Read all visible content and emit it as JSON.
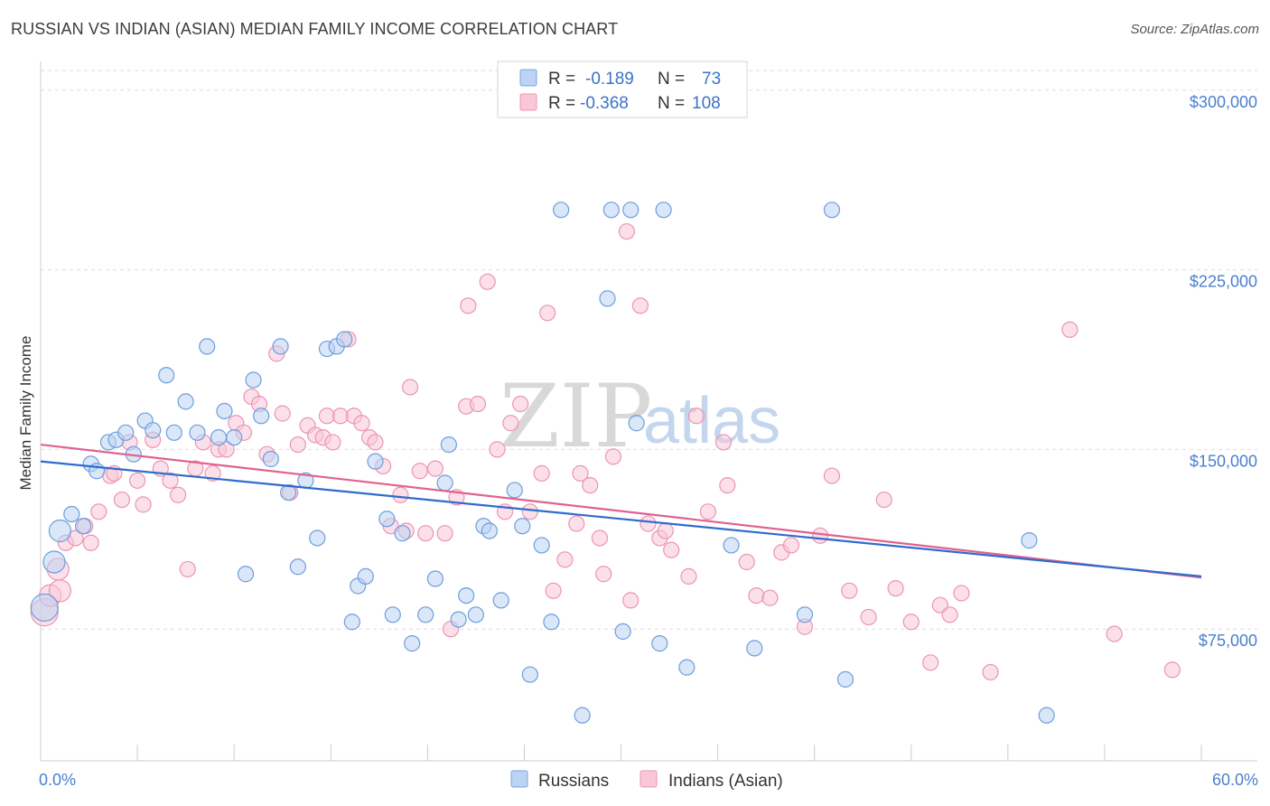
{
  "header": {
    "title": "RUSSIAN VS INDIAN (ASIAN) MEDIAN FAMILY INCOME CORRELATION CHART",
    "source": "Source: ZipAtlas.com"
  },
  "watermark": {
    "part1": "ZIP",
    "part2": "atlas"
  },
  "legend_top": {
    "rows": [
      {
        "r_label": "R =",
        "r_value": "-0.189",
        "n_label": "N =",
        "n_value": "73"
      },
      {
        "r_label": "R =",
        "r_value": "-0.368",
        "n_label": "N =",
        "n_value": "108"
      }
    ]
  },
  "legend_bottom": {
    "items": [
      "Russians",
      "Indians (Asian)"
    ]
  },
  "chart_data": {
    "type": "scatter",
    "title": "RUSSIAN VS INDIAN (ASIAN) MEDIAN FAMILY INCOME CORRELATION CHART",
    "xlabel": "",
    "ylabel": "Median Family Income",
    "xlim": [
      0,
      60
    ],
    "ylim": [
      20000,
      315000
    ],
    "x_tick_labels": [
      "0.0%",
      "60.0%"
    ],
    "y_tick_values": [
      75000,
      150000,
      225000,
      300000
    ],
    "y_tick_labels": [
      "$75,000",
      "$150,000",
      "$225,000",
      "$300,000"
    ],
    "grid": true,
    "colors": {
      "russians": "#8fb6e8",
      "indians": "#f2a7c0",
      "russians_line": "#2f6ccc",
      "indians_line": "#e0628f",
      "tick_text": "#4a7fcf"
    },
    "series": [
      {
        "name": "Russians",
        "trend": {
          "x": [
            0,
            60
          ],
          "y": [
            145000,
            97000
          ]
        },
        "points": [
          [
            0.2,
            84000
          ],
          [
            0.7,
            103000
          ],
          [
            1.0,
            116000
          ],
          [
            1.6,
            123000
          ],
          [
            2.2,
            118000
          ],
          [
            2.6,
            144000
          ],
          [
            2.9,
            141000
          ],
          [
            3.5,
            153000
          ],
          [
            3.9,
            154000
          ],
          [
            4.4,
            157000
          ],
          [
            4.8,
            148000
          ],
          [
            5.4,
            162000
          ],
          [
            5.8,
            158000
          ],
          [
            6.5,
            181000
          ],
          [
            6.9,
            157000
          ],
          [
            7.5,
            170000
          ],
          [
            8.1,
            157000
          ],
          [
            8.6,
            193000
          ],
          [
            9.2,
            155000
          ],
          [
            9.5,
            166000
          ],
          [
            10.0,
            155000
          ],
          [
            10.6,
            98000
          ],
          [
            11.0,
            179000
          ],
          [
            11.4,
            164000
          ],
          [
            11.9,
            146000
          ],
          [
            12.4,
            193000
          ],
          [
            12.8,
            132000
          ],
          [
            13.3,
            101000
          ],
          [
            13.7,
            137000
          ],
          [
            14.3,
            113000
          ],
          [
            14.8,
            192000
          ],
          [
            15.3,
            193000
          ],
          [
            15.7,
            196000
          ],
          [
            16.1,
            78000
          ],
          [
            16.4,
            93000
          ],
          [
            16.8,
            97000
          ],
          [
            17.3,
            145000
          ],
          [
            17.9,
            121000
          ],
          [
            18.2,
            81000
          ],
          [
            18.7,
            115000
          ],
          [
            19.2,
            69000
          ],
          [
            19.9,
            81000
          ],
          [
            20.4,
            96000
          ],
          [
            20.9,
            136000
          ],
          [
            21.1,
            152000
          ],
          [
            21.6,
            79000
          ],
          [
            22.0,
            89000
          ],
          [
            22.5,
            81000
          ],
          [
            22.9,
            118000
          ],
          [
            23.2,
            116000
          ],
          [
            23.8,
            87000
          ],
          [
            24.5,
            133000
          ],
          [
            24.9,
            118000
          ],
          [
            25.3,
            56000
          ],
          [
            25.9,
            110000
          ],
          [
            26.4,
            78000
          ],
          [
            26.9,
            250000
          ],
          [
            28.0,
            39000
          ],
          [
            29.3,
            213000
          ],
          [
            29.5,
            250000
          ],
          [
            30.1,
            74000
          ],
          [
            30.5,
            250000
          ],
          [
            30.8,
            161000
          ],
          [
            32.0,
            69000
          ],
          [
            32.2,
            250000
          ],
          [
            33.4,
            59000
          ],
          [
            35.7,
            110000
          ],
          [
            36.9,
            67000
          ],
          [
            39.5,
            81000
          ],
          [
            40.9,
            250000
          ],
          [
            41.6,
            54000
          ],
          [
            51.1,
            112000
          ],
          [
            52.0,
            39000
          ]
        ]
      },
      {
        "name": "Indians (Asian)",
        "trend": {
          "x": [
            0,
            60
          ],
          "y": [
            152000,
            96500
          ]
        },
        "points": [
          [
            0.2,
            82000
          ],
          [
            0.5,
            89000
          ],
          [
            0.9,
            100000
          ],
          [
            1.3,
            111000
          ],
          [
            1.8,
            113000
          ],
          [
            2.3,
            118000
          ],
          [
            2.6,
            111000
          ],
          [
            3.0,
            124000
          ],
          [
            3.6,
            139000
          ],
          [
            3.8,
            140000
          ],
          [
            4.2,
            129000
          ],
          [
            4.6,
            153000
          ],
          [
            5.0,
            137000
          ],
          [
            5.3,
            127000
          ],
          [
            5.8,
            154000
          ],
          [
            6.2,
            142000
          ],
          [
            6.7,
            137000
          ],
          [
            7.1,
            131000
          ],
          [
            7.6,
            100000
          ],
          [
            8.0,
            142000
          ],
          [
            8.4,
            153000
          ],
          [
            8.9,
            140000
          ],
          [
            9.2,
            150000
          ],
          [
            9.6,
            150000
          ],
          [
            10.1,
            161000
          ],
          [
            10.5,
            157000
          ],
          [
            10.9,
            172000
          ],
          [
            11.3,
            169000
          ],
          [
            11.7,
            148000
          ],
          [
            12.2,
            190000
          ],
          [
            12.5,
            165000
          ],
          [
            12.9,
            132000
          ],
          [
            13.3,
            152000
          ],
          [
            13.8,
            160000
          ],
          [
            14.2,
            156000
          ],
          [
            14.6,
            155000
          ],
          [
            14.8,
            164000
          ],
          [
            15.1,
            153000
          ],
          [
            15.5,
            164000
          ],
          [
            15.9,
            196000
          ],
          [
            16.2,
            164000
          ],
          [
            16.6,
            161000
          ],
          [
            17.0,
            155000
          ],
          [
            17.3,
            153000
          ],
          [
            17.7,
            143000
          ],
          [
            18.1,
            118000
          ],
          [
            18.6,
            131000
          ],
          [
            18.9,
            116000
          ],
          [
            19.1,
            176000
          ],
          [
            19.6,
            141000
          ],
          [
            19.9,
            115000
          ],
          [
            20.4,
            142000
          ],
          [
            20.9,
            115000
          ],
          [
            21.2,
            75000
          ],
          [
            21.5,
            130000
          ],
          [
            22.0,
            168000
          ],
          [
            22.1,
            210000
          ],
          [
            22.6,
            169000
          ],
          [
            23.1,
            220000
          ],
          [
            23.6,
            150000
          ],
          [
            24.0,
            124000
          ],
          [
            24.3,
            161000
          ],
          [
            24.8,
            169000
          ],
          [
            25.3,
            124000
          ],
          [
            25.9,
            140000
          ],
          [
            26.2,
            207000
          ],
          [
            26.5,
            91000
          ],
          [
            27.1,
            104000
          ],
          [
            27.7,
            119000
          ],
          [
            27.9,
            140000
          ],
          [
            28.4,
            135000
          ],
          [
            28.9,
            113000
          ],
          [
            29.1,
            98000
          ],
          [
            29.6,
            147000
          ],
          [
            30.3,
            241000
          ],
          [
            30.5,
            87000
          ],
          [
            31.0,
            210000
          ],
          [
            31.4,
            119000
          ],
          [
            32.0,
            113000
          ],
          [
            32.3,
            116000
          ],
          [
            32.6,
            108000
          ],
          [
            33.5,
            97000
          ],
          [
            33.9,
            164000
          ],
          [
            34.5,
            124000
          ],
          [
            35.3,
            153000
          ],
          [
            35.5,
            135000
          ],
          [
            36.5,
            103000
          ],
          [
            37.0,
            89000
          ],
          [
            37.7,
            88000
          ],
          [
            38.3,
            107000
          ],
          [
            38.8,
            110000
          ],
          [
            39.5,
            76000
          ],
          [
            40.3,
            114000
          ],
          [
            40.9,
            139000
          ],
          [
            41.8,
            91000
          ],
          [
            42.8,
            80000
          ],
          [
            43.6,
            129000
          ],
          [
            44.2,
            92000
          ],
          [
            45.0,
            78000
          ],
          [
            46.0,
            61000
          ],
          [
            46.5,
            85000
          ],
          [
            47.0,
            81000
          ],
          [
            47.6,
            90000
          ],
          [
            49.1,
            57000
          ],
          [
            53.2,
            200000
          ],
          [
            55.5,
            73000
          ],
          [
            58.5,
            58000
          ],
          [
            1.0,
            91000
          ]
        ]
      }
    ]
  }
}
